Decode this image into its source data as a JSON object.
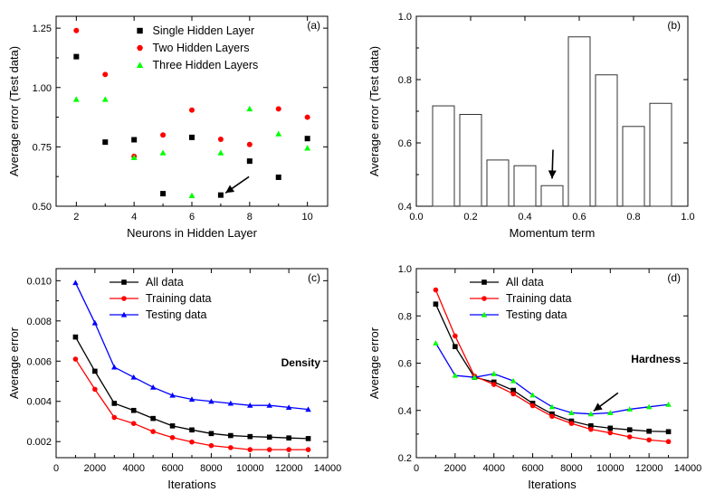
{
  "chart_data": [
    {
      "id": "a",
      "type": "scatter",
      "panel_label": "(a)",
      "xlabel": "Neurons in Hidden Layer",
      "ylabel": "Average error (Test data)",
      "xlim": [
        1.3,
        10.7
      ],
      "ylim": [
        0.5,
        1.3
      ],
      "xticks": [
        "2",
        "4",
        "6",
        "8",
        "10"
      ],
      "xtick_values": [
        2,
        4,
        6,
        8,
        10
      ],
      "yticks": [
        "0.50",
        "0.75",
        "1.00",
        "1.25"
      ],
      "ytick_values": [
        0.5,
        0.75,
        1.0,
        1.25
      ],
      "series": [
        {
          "name": "Single Hidden Layer",
          "marker": "square",
          "color": "#000000",
          "x": [
            2,
            3,
            4,
            5,
            6,
            7,
            8,
            9,
            10
          ],
          "values": [
            1.13,
            0.77,
            0.78,
            0.553,
            0.79,
            0.547,
            0.69,
            0.622,
            0.785
          ]
        },
        {
          "name": "Two Hidden Layers",
          "marker": "circle",
          "color": "#ff0000",
          "x": [
            2,
            3,
            4,
            5,
            6,
            7,
            8,
            9,
            10
          ],
          "values": [
            1.24,
            1.055,
            0.71,
            0.8,
            0.905,
            0.782,
            0.76,
            0.91,
            0.875
          ]
        },
        {
          "name": "Three Hidden Layers",
          "marker": "triangle",
          "color": "#00ff00",
          "x": [
            2,
            3,
            4,
            5,
            6,
            7,
            8,
            9,
            10
          ],
          "values": [
            0.95,
            0.95,
            0.705,
            0.725,
            0.545,
            0.725,
            0.91,
            0.805,
            0.745
          ]
        }
      ],
      "arrow_target": {
        "x": 7.1,
        "y": 0.548
      }
    },
    {
      "id": "b",
      "type": "bar",
      "panel_label": "(b)",
      "xlabel": "Momentum term",
      "ylabel": "Average error (Test data)",
      "xlim": [
        0.0,
        1.0
      ],
      "ylim": [
        0.4,
        1.0
      ],
      "xticks": [
        "0.0",
        "0.2",
        "0.4",
        "0.6",
        "0.8",
        "1.0"
      ],
      "xtick_values": [
        0.0,
        0.2,
        0.4,
        0.6,
        0.8,
        1.0
      ],
      "yticks": [
        "0.4",
        "0.6",
        "0.8",
        "1.0"
      ],
      "ytick_values": [
        0.4,
        0.6,
        0.8,
        1.0
      ],
      "bar_width": 0.08,
      "x": [
        0.1,
        0.2,
        0.3,
        0.4,
        0.5,
        0.6,
        0.7,
        0.8,
        0.9
      ],
      "values": [
        0.717,
        0.69,
        0.546,
        0.528,
        0.465,
        0.935,
        0.815,
        0.652,
        0.725
      ],
      "arrow_target": {
        "x": 0.5,
        "y": 0.47
      }
    },
    {
      "id": "c",
      "type": "line",
      "panel_label": "(c)",
      "annotation": "Density",
      "xlabel": "Iterations",
      "ylabel": "Average error",
      "xlim": [
        0,
        14000
      ],
      "ylim": [
        0.0012,
        0.0106
      ],
      "xticks": [
        "0",
        "2000",
        "4000",
        "6000",
        "8000",
        "10000",
        "12000",
        "14000"
      ],
      "xtick_values": [
        0,
        2000,
        4000,
        6000,
        8000,
        10000,
        12000,
        14000
      ],
      "yticks": [
        "0.002",
        "0.004",
        "0.006",
        "0.008",
        "0.010"
      ],
      "ytick_values": [
        0.002,
        0.004,
        0.006,
        0.008,
        0.01
      ],
      "x": [
        1000,
        2000,
        3000,
        4000,
        5000,
        6000,
        7000,
        8000,
        9000,
        10000,
        11000,
        12000,
        13000
      ],
      "series": [
        {
          "name": "All data",
          "marker": "square",
          "color": "#000000",
          "values": [
            0.0072,
            0.0055,
            0.0039,
            0.00355,
            0.00315,
            0.00278,
            0.00258,
            0.0024,
            0.0023,
            0.00225,
            0.00222,
            0.00218,
            0.00215
          ]
        },
        {
          "name": "Training data",
          "marker": "circle",
          "color": "#ff0000",
          "values": [
            0.0061,
            0.0046,
            0.0032,
            0.0029,
            0.0025,
            0.0022,
            0.00198,
            0.0018,
            0.0017,
            0.0016,
            0.0016,
            0.0016,
            0.0016
          ]
        },
        {
          "name": "Testing data",
          "marker": "triangle",
          "color": "#0000ff",
          "values": [
            0.0099,
            0.0079,
            0.0057,
            0.0052,
            0.0047,
            0.0043,
            0.0041,
            0.004,
            0.0039,
            0.0038,
            0.0038,
            0.0037,
            0.0036
          ]
        }
      ]
    },
    {
      "id": "d",
      "type": "line",
      "panel_label": "(d)",
      "annotation": "Hardness",
      "xlabel": "Iterations",
      "ylabel": "Average error",
      "xlim": [
        0,
        14000
      ],
      "ylim": [
        0.2,
        1.0
      ],
      "xticks": [
        "0",
        "2000",
        "4000",
        "6000",
        "8000",
        "10000",
        "12000",
        "14000"
      ],
      "xtick_values": [
        0,
        2000,
        4000,
        6000,
        8000,
        10000,
        12000,
        14000
      ],
      "yticks": [
        "0.2",
        "0.4",
        "0.6",
        "0.8",
        "1.0"
      ],
      "ytick_values": [
        0.2,
        0.4,
        0.6,
        0.8,
        1.0
      ],
      "x": [
        1000,
        2000,
        3000,
        4000,
        5000,
        6000,
        7000,
        8000,
        9000,
        10000,
        11000,
        12000,
        13000
      ],
      "series": [
        {
          "name": "All data",
          "marker": "square",
          "color": "#000000",
          "values": [
            0.85,
            0.67,
            0.54,
            0.52,
            0.485,
            0.43,
            0.385,
            0.355,
            0.335,
            0.325,
            0.318,
            0.312,
            0.31
          ]
        },
        {
          "name": "Training data",
          "marker": "circle",
          "color": "#ff0000",
          "values": [
            0.91,
            0.715,
            0.545,
            0.51,
            0.47,
            0.42,
            0.375,
            0.345,
            0.32,
            0.305,
            0.288,
            0.275,
            0.268
          ]
        },
        {
          "name": "Testing data",
          "marker": "triangle",
          "color": "#0000ff",
          "marker_color": "#00ff00",
          "values": [
            0.685,
            0.548,
            0.54,
            0.555,
            0.525,
            0.465,
            0.415,
            0.39,
            0.385,
            0.39,
            0.405,
            0.415,
            0.425
          ]
        }
      ],
      "arrow_target": {
        "x": 9000,
        "y": 0.39
      }
    }
  ]
}
